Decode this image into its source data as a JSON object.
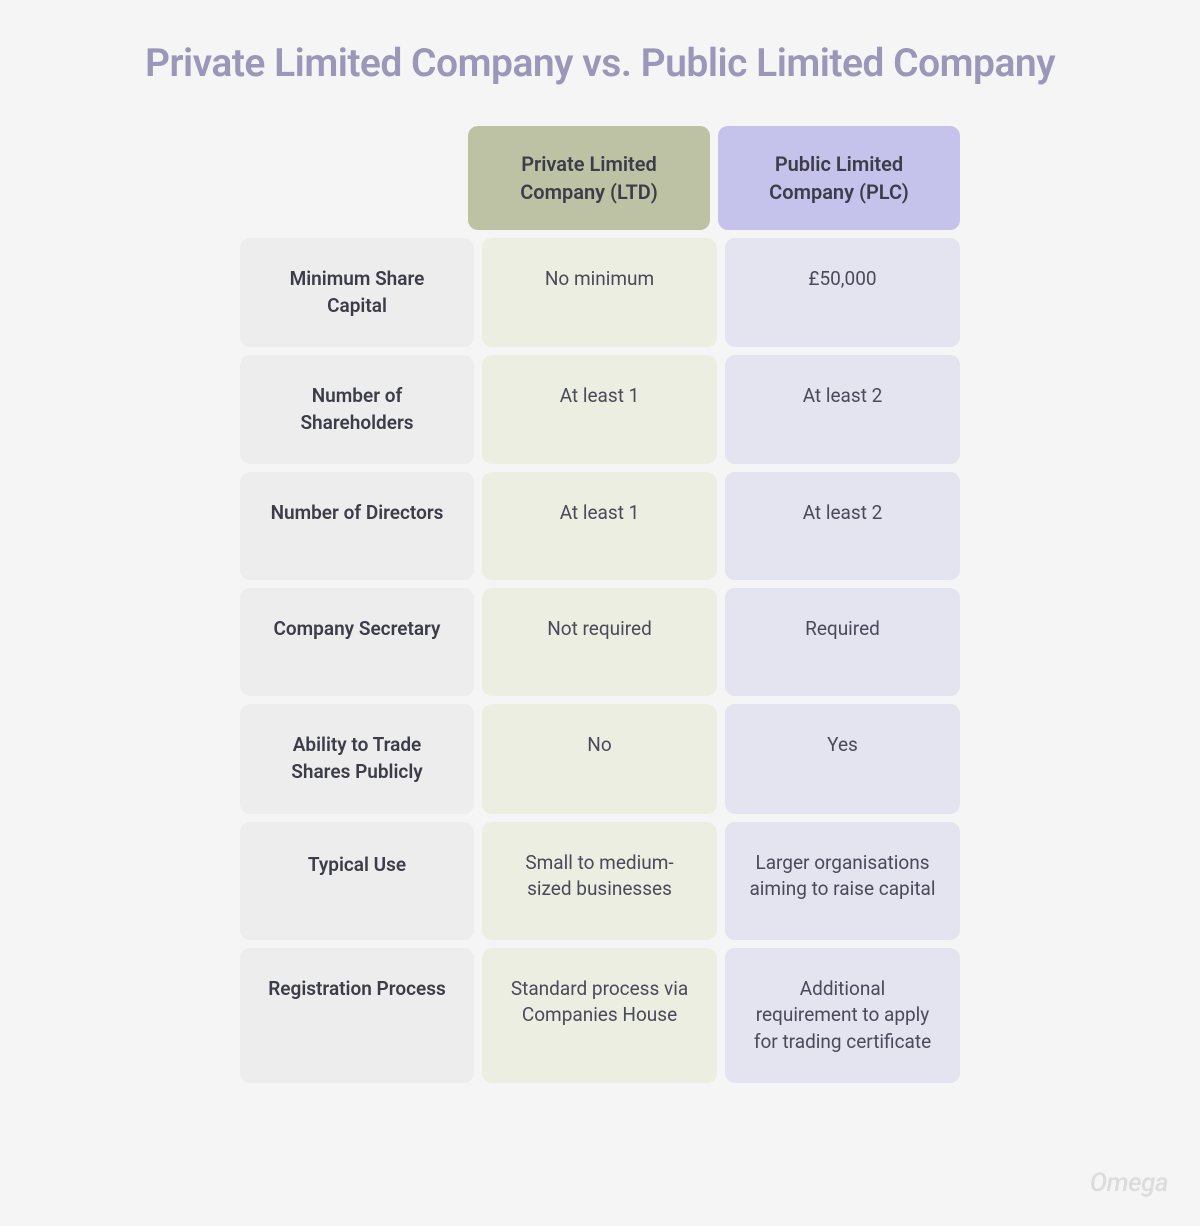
{
  "title": "Private Limited Company vs. Public Limited Company",
  "watermark": "Omega",
  "colors": {
    "background": "#f5f5f5",
    "title_color": "#9b97b8",
    "header_ltd_bg": "#bcc2a3",
    "header_plc_bg": "#c5c2eb",
    "label_bg": "#ededed",
    "value_ltd_bg": "#edeee2",
    "value_plc_bg": "#e4e3f0",
    "text_primary": "#3d3d4a",
    "text_secondary": "#4a4a5a",
    "watermark_color": "#dcdcdc"
  },
  "typography": {
    "title_fontsize": 39,
    "header_fontsize": 20,
    "cell_fontsize": 19,
    "watermark_fontsize": 26
  },
  "layout": {
    "border_radius": 10,
    "gap": 8,
    "label_col_width": 220,
    "value_col_width": 235
  },
  "table": {
    "columns": [
      {
        "id": "ltd",
        "label": "Private Limited Company (LTD)"
      },
      {
        "id": "plc",
        "label": "Public Limited Company (PLC)"
      }
    ],
    "rows": [
      {
        "label": "Minimum Share Capital",
        "ltd": "No minimum",
        "plc": "£50,000"
      },
      {
        "label": "Number of Shareholders",
        "ltd": "At least 1",
        "plc": "At least 2"
      },
      {
        "label": "Number of Directors",
        "ltd": "At least 1",
        "plc": "At least 2"
      },
      {
        "label": "Company Secretary",
        "ltd": "Not required",
        "plc": "Required"
      },
      {
        "label": "Ability to Trade Shares Publicly",
        "ltd": "No",
        "plc": "Yes"
      },
      {
        "label": "Typical Use",
        "ltd": "Small to medium-sized businesses",
        "plc": "Larger organisations aiming to raise capital"
      },
      {
        "label": "Registration Process",
        "ltd": "Standard process via Companies House",
        "plc": "Additional requirement to apply for trading certificate"
      }
    ]
  }
}
